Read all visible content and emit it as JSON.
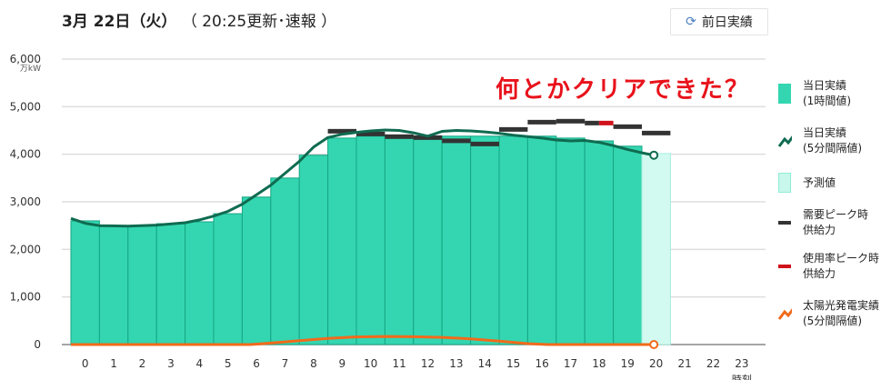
{
  "header": {
    "date": "3月 22日（火）",
    "update": "（ 20:25更新･速報 ）",
    "prev_button": "前日実績",
    "refresh_icon": "refresh-icon"
  },
  "comment": "何とかクリアできた？",
  "legend": [
    {
      "l1": "当日実績",
      "l2": "(1時間値)",
      "kind": "bar",
      "color": "#33d6b0"
    },
    {
      "l1": "当日実績",
      "l2": "(5分間隔値)",
      "kind": "line",
      "color": "#0f6b50"
    },
    {
      "l1": "予測値",
      "l2": "",
      "kind": "forecast",
      "color": "#c8f7ec"
    },
    {
      "l1": "需要ピーク時",
      "l2": "供給力",
      "kind": "dash",
      "color": "#333333"
    },
    {
      "l1": "使用率ピーク時",
      "l2": "供給力",
      "kind": "dash",
      "color": "#d0121b"
    },
    {
      "l1": "太陽光発電実績",
      "l2": "(5分間隔値)",
      "kind": "line",
      "color": "#f26a1b"
    }
  ],
  "chart_data": {
    "type": "bar",
    "ylabel": "万kW",
    "xlabel": "時刻",
    "ylim": [
      0,
      6000
    ],
    "yticks": [
      "0",
      "1,000",
      "2,000",
      "3,000",
      "4,000",
      "5,000",
      "6,000"
    ],
    "categories": [
      "0",
      "1",
      "2",
      "3",
      "4",
      "5",
      "6",
      "7",
      "8",
      "9",
      "10",
      "11",
      "12",
      "13",
      "14",
      "15",
      "16",
      "17",
      "18",
      "19",
      "20",
      "21",
      "22",
      "23"
    ],
    "actual_hourly": [
      2600,
      2500,
      2500,
      2540,
      2580,
      2750,
      3100,
      3500,
      3980,
      4340,
      4380,
      4380,
      4380,
      4380,
      4380,
      4380,
      4380,
      4340,
      4280,
      4170
    ],
    "forecast": {
      "hour": 20,
      "value": 4015
    },
    "peak_supply": [
      {
        "hour": 9,
        "value": 4474
      },
      {
        "hour": 10,
        "value": 4417
      },
      {
        "hour": 11,
        "value": 4360
      },
      {
        "hour": 12,
        "value": 4340
      },
      {
        "hour": 13,
        "value": 4273
      },
      {
        "hour": 14,
        "value": 4206
      },
      {
        "hour": 15,
        "value": 4512
      },
      {
        "hour": 16,
        "value": 4665
      },
      {
        "hour": 17,
        "value": 4685
      },
      {
        "hour": 18,
        "value": 4646,
        "usage_peak_part": true
      },
      {
        "hour": 19,
        "value": 4570
      },
      {
        "hour": 20,
        "value": 4436
      }
    ],
    "demand_5min": [
      [
        0,
        2650
      ],
      [
        0.5,
        2550
      ],
      [
        1,
        2500
      ],
      [
        2,
        2490
      ],
      [
        3,
        2510
      ],
      [
        4,
        2560
      ],
      [
        4.5,
        2620
      ],
      [
        5,
        2700
      ],
      [
        5.5,
        2800
      ],
      [
        6,
        2950
      ],
      [
        6.5,
        3150
      ],
      [
        7,
        3350
      ],
      [
        7.5,
        3600
      ],
      [
        8,
        3850
      ],
      [
        8.5,
        4150
      ],
      [
        9,
        4350
      ],
      [
        9.5,
        4420
      ],
      [
        10,
        4460
      ],
      [
        10.5,
        4490
      ],
      [
        11,
        4510
      ],
      [
        11.5,
        4500
      ],
      [
        12,
        4450
      ],
      [
        12.5,
        4380
      ],
      [
        13,
        4480
      ],
      [
        13.5,
        4500
      ],
      [
        14,
        4490
      ],
      [
        14.5,
        4470
      ],
      [
        15,
        4440
      ],
      [
        15.5,
        4400
      ],
      [
        16,
        4370
      ],
      [
        16.5,
        4340
      ],
      [
        17,
        4300
      ],
      [
        17.5,
        4280
      ],
      [
        18,
        4290
      ],
      [
        18.5,
        4250
      ],
      [
        19,
        4180
      ],
      [
        19.5,
        4100
      ],
      [
        20,
        4030
      ],
      [
        20.42,
        3980
      ]
    ],
    "solar_5min": [
      [
        0,
        0
      ],
      [
        6.3,
        0
      ],
      [
        7,
        30
      ],
      [
        8,
        80
      ],
      [
        9,
        130
      ],
      [
        10,
        160
      ],
      [
        11,
        170
      ],
      [
        12,
        165
      ],
      [
        13,
        150
      ],
      [
        14,
        120
      ],
      [
        15,
        70
      ],
      [
        16,
        20
      ],
      [
        16.7,
        0
      ],
      [
        20.42,
        0
      ]
    ]
  }
}
